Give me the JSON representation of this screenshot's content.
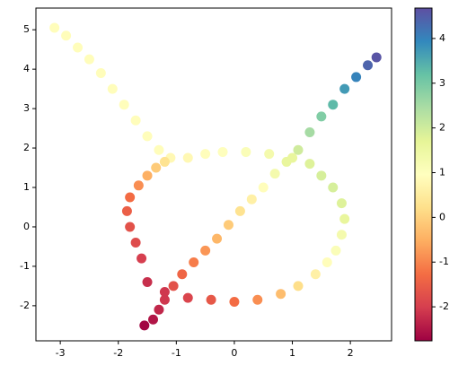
{
  "chart_data": {
    "type": "scatter",
    "x": [
      -1.55,
      -1.4,
      -1.3,
      -1.2,
      -1.05,
      -0.9,
      -0.7,
      -0.5,
      -0.3,
      -0.1,
      0.1,
      0.3,
      0.5,
      0.7,
      0.9,
      1.1,
      1.3,
      1.5,
      1.7,
      1.9,
      2.1,
      2.3,
      2.45,
      -3.1,
      -2.9,
      -2.7,
      -2.5,
      -2.3,
      -2.1,
      -1.9,
      -1.7,
      -1.5,
      -1.3,
      -1.1,
      -0.8,
      -0.5,
      -0.2,
      0.2,
      0.6,
      1.0,
      1.3,
      1.5,
      1.7,
      1.85,
      1.9,
      1.85,
      1.75,
      1.6,
      1.4,
      1.1,
      0.8,
      0.4,
      0.0,
      -0.4,
      -0.8,
      -1.2,
      -1.5,
      -1.6,
      -1.7,
      -1.8,
      -1.85,
      -1.8,
      -1.65,
      -1.5,
      -1.35,
      -1.2
    ],
    "y": [
      -2.5,
      -2.35,
      -2.1,
      -1.85,
      -1.5,
      -1.2,
      -0.9,
      -0.6,
      -0.3,
      0.05,
      0.4,
      0.7,
      1.0,
      1.35,
      1.65,
      1.95,
      2.4,
      2.8,
      3.1,
      3.5,
      3.8,
      4.1,
      4.3,
      5.05,
      4.85,
      4.55,
      4.25,
      3.9,
      3.5,
      3.1,
      2.7,
      2.3,
      1.95,
      1.75,
      1.75,
      1.85,
      1.9,
      1.9,
      1.85,
      1.75,
      1.6,
      1.3,
      1.0,
      0.6,
      0.2,
      -0.2,
      -0.6,
      -0.9,
      -1.2,
      -1.5,
      -1.7,
      -1.85,
      -1.9,
      -1.85,
      -1.8,
      -1.65,
      -1.4,
      -0.8,
      -0.4,
      0.0,
      0.4,
      0.75,
      1.05,
      1.3,
      1.5,
      1.65
    ],
    "c": [
      -2.7,
      -2.5,
      -2.3,
      -2.1,
      -1.7,
      -1.4,
      -1.1,
      -0.8,
      -0.4,
      -0.1,
      0.3,
      0.6,
      0.9,
      1.3,
      1.6,
      2.0,
      2.5,
      2.9,
      3.3,
      3.7,
      4.0,
      4.4,
      4.6,
      0.9,
      0.9,
      0.9,
      0.9,
      0.9,
      0.9,
      0.9,
      0.9,
      0.9,
      0.9,
      0.8,
      0.8,
      0.9,
      1.0,
      1.1,
      1.3,
      1.6,
      1.8,
      1.9,
      1.9,
      1.8,
      1.6,
      1.3,
      1.1,
      0.9,
      0.6,
      0.2,
      -0.3,
      -0.9,
      -1.3,
      -1.6,
      -1.9,
      -2.1,
      -2.2,
      -2.0,
      -1.8,
      -1.7,
      -1.5,
      -1.3,
      -0.9,
      -0.5,
      -0.1,
      0.3
    ],
    "colormap": "Spectral",
    "xlim": [
      -3.42,
      2.71
    ],
    "xticks": [
      -3,
      -2,
      -1,
      0,
      1,
      2
    ],
    "ylim": [
      -2.89,
      5.55
    ],
    "yticks": [
      -2,
      -1,
      0,
      1,
      2,
      3,
      4,
      5
    ],
    "clim": [
      -2.76,
      4.68
    ],
    "cticks": [
      -2,
      -1,
      0,
      1,
      2,
      3,
      4
    ]
  }
}
